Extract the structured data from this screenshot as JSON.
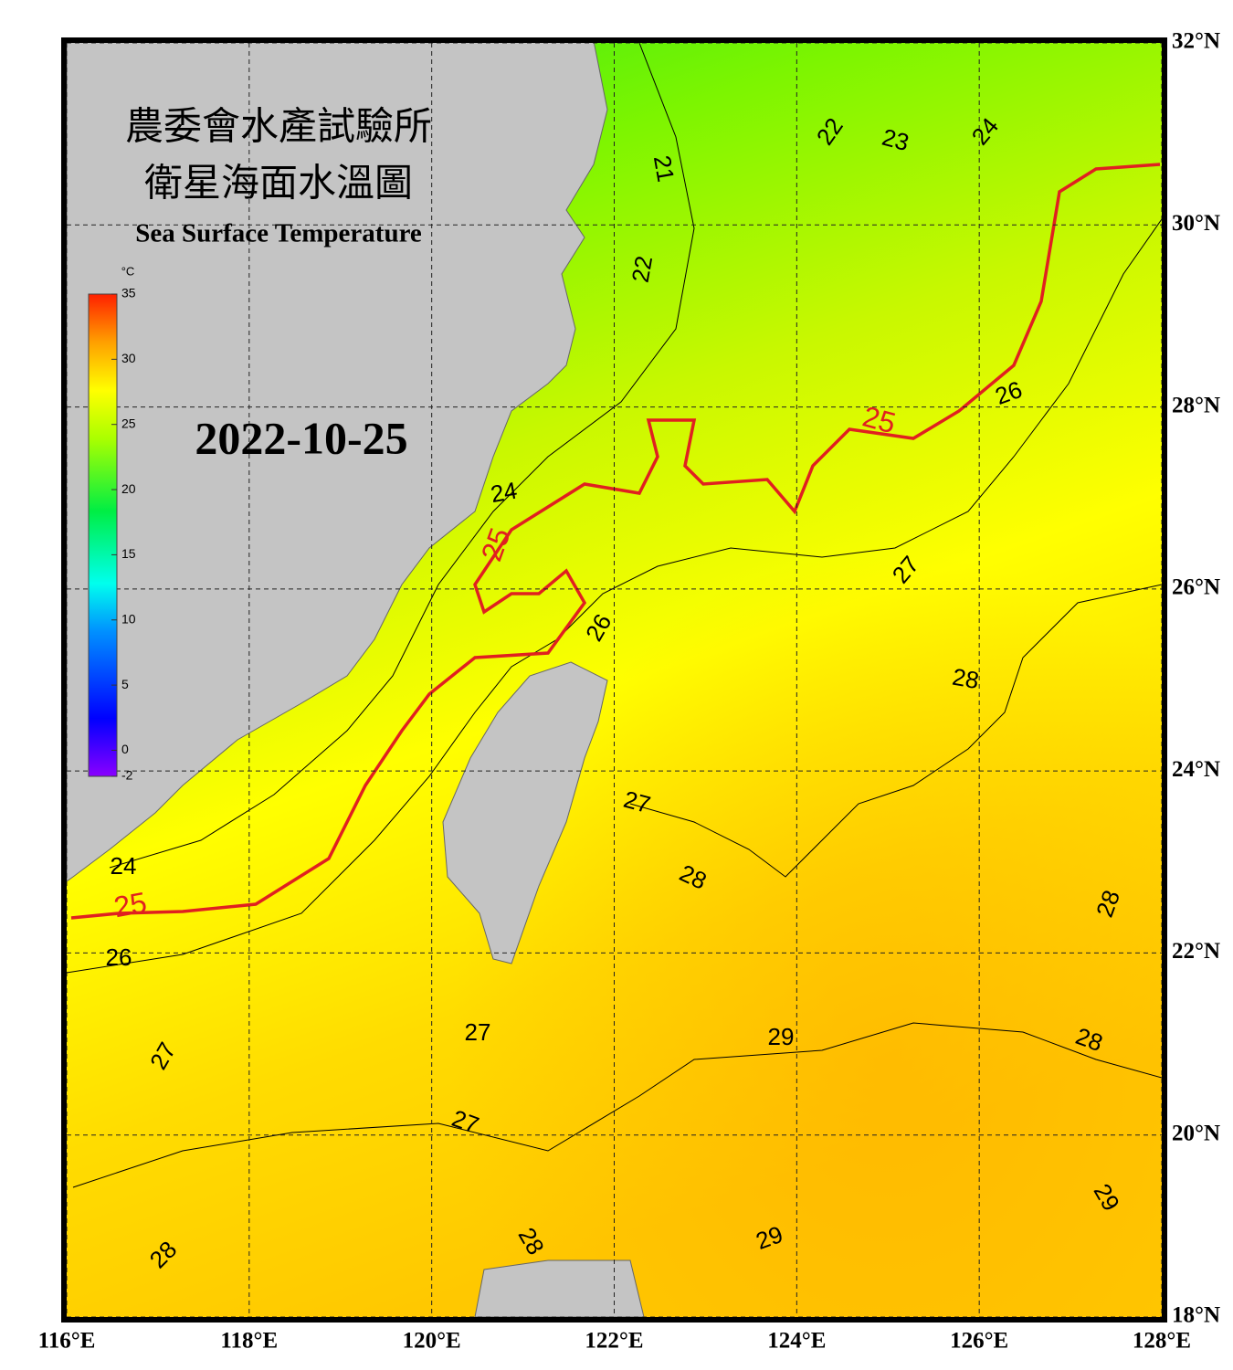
{
  "title": "農委會水產試驗所",
  "subtitle": "衛星海面水溫圖",
  "english_title": "Sea Surface Temperature",
  "date": "2022-10-25",
  "colorbar": {
    "unit": "°C",
    "range": [
      -2,
      35
    ],
    "ticks": [
      35,
      30,
      25,
      20,
      15,
      10,
      5,
      0,
      -2
    ]
  },
  "lonlim": [
    116,
    128
  ],
  "latlim": [
    18,
    32
  ],
  "lon_ticks": [
    {
      "value": 116,
      "label": "116°E"
    },
    {
      "value": 118,
      "label": "118°E"
    },
    {
      "value": 120,
      "label": "120°E"
    },
    {
      "value": 122,
      "label": "122°E"
    },
    {
      "value": 124,
      "label": "124°E"
    },
    {
      "value": 126,
      "label": "126°E"
    },
    {
      "value": 128,
      "label": "128°E"
    }
  ],
  "lat_ticks": [
    {
      "value": 32,
      "label": "32°N"
    },
    {
      "value": 30,
      "label": "30°N"
    },
    {
      "value": 28,
      "label": "28°N"
    },
    {
      "value": 26,
      "label": "26°N"
    },
    {
      "value": 24,
      "label": "24°N"
    },
    {
      "value": 22,
      "label": "22°N"
    },
    {
      "value": 20,
      "label": "20°N"
    },
    {
      "value": 18,
      "label": "18°N"
    }
  ],
  "contour_labels": [
    {
      "value": 21,
      "color": "#000000"
    },
    {
      "value": 22,
      "color": "#000000"
    },
    {
      "value": 23,
      "color": "#000000"
    },
    {
      "value": 24,
      "color": "#000000"
    },
    {
      "value": 22,
      "color": "#000000"
    },
    {
      "value": 26,
      "color": "#000000"
    },
    {
      "value": 25,
      "color": "#e02020"
    },
    {
      "value": 24,
      "color": "#000000"
    },
    {
      "value": 25,
      "color": "#e02020"
    },
    {
      "value": 27,
      "color": "#000000"
    },
    {
      "value": 26,
      "color": "#000000"
    },
    {
      "value": 28,
      "color": "#000000"
    },
    {
      "value": 27,
      "color": "#000000"
    },
    {
      "value": 28,
      "color": "#000000"
    },
    {
      "value": 24,
      "color": "#000000"
    },
    {
      "value": 25,
      "color": "#e02020"
    },
    {
      "value": 28,
      "color": "#000000"
    },
    {
      "value": 26,
      "color": "#000000"
    },
    {
      "value": 27,
      "color": "#000000"
    },
    {
      "value": 29,
      "color": "#000000"
    },
    {
      "value": 28,
      "color": "#000000"
    },
    {
      "value": 27,
      "color": "#000000"
    },
    {
      "value": 27,
      "color": "#000000"
    },
    {
      "value": 29,
      "color": "#000000"
    },
    {
      "value": 28,
      "color": "#000000"
    },
    {
      "value": 28,
      "color": "#000000"
    },
    {
      "value": 29,
      "color": "#000000"
    }
  ]
}
